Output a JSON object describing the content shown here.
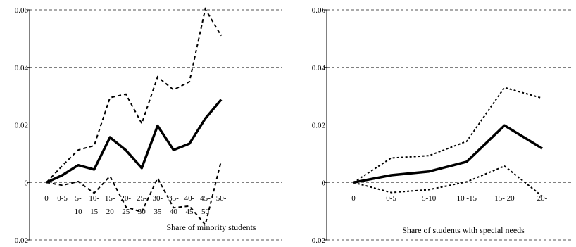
{
  "chart_data": [
    {
      "type": "line",
      "ylim": [
        -0.02,
        0.06
      ],
      "yticks": [
        "-0.02",
        "0",
        "0.02",
        "0.04",
        "0.06"
      ],
      "ytick_values": [
        -0.02,
        0,
        0.02,
        0.04,
        0.06
      ],
      "grid": true,
      "xlabel": "Share of minority students",
      "categories": [
        {
          "l1": "0",
          "l2": ""
        },
        {
          "l1": "0-5",
          "l2": ""
        },
        {
          "l1": "5-",
          "l2": "10"
        },
        {
          "l1": "10-",
          "l2": "15"
        },
        {
          "l1": "15-",
          "l2": "20"
        },
        {
          "l1": "20-",
          "l2": "25"
        },
        {
          "l1": "25-",
          "l2": "30"
        },
        {
          "l1": "30-",
          "l2": "35"
        },
        {
          "l1": "35-",
          "l2": "40"
        },
        {
          "l1": "40-",
          "l2": "45"
        },
        {
          "l1": "45-",
          "l2": "50"
        },
        {
          "l1": "50-",
          "l2": ""
        }
      ],
      "series": [
        {
          "role": "estimate",
          "values": [
            0,
            0.0025,
            0.006,
            0.0045,
            0.0157,
            0.0112,
            0.005,
            0.0197,
            0.0113,
            0.0135,
            0.0222,
            0.0288
          ]
        },
        {
          "role": "upper",
          "values": [
            0,
            0.0058,
            0.0113,
            0.0128,
            0.0295,
            0.0307,
            0.0205,
            0.0367,
            0.0322,
            0.035,
            0.0603,
            0.051
          ]
        },
        {
          "role": "lower",
          "values": [
            0,
            -0.001,
            0.0003,
            -0.0037,
            0.0022,
            -0.0085,
            -0.0103,
            0.0015,
            -0.0088,
            -0.0082,
            -0.0147,
            0.0075
          ]
        }
      ]
    },
    {
      "type": "line",
      "ylim": [
        -0.02,
        0.06
      ],
      "yticks": [
        "-0.02",
        "0",
        "0.02",
        "0.04",
        "0.06"
      ],
      "ytick_values": [
        -0.02,
        0,
        0.02,
        0.04,
        0.06
      ],
      "grid": true,
      "xlabel": "Share of students with special needs",
      "categories": [
        {
          "l1": "0",
          "l2": ""
        },
        {
          "l1": "0-5",
          "l2": ""
        },
        {
          "l1": "5-10",
          "l2": ""
        },
        {
          "l1": "10 -15",
          "l2": ""
        },
        {
          "l1": "15- 20",
          "l2": ""
        },
        {
          "l1": "20-",
          "l2": ""
        }
      ],
      "series": [
        {
          "role": "estimate",
          "values": [
            0,
            0.0025,
            0.0038,
            0.0072,
            0.0198,
            0.0118
          ]
        },
        {
          "role": "upper",
          "values": [
            0,
            0.0085,
            0.0093,
            0.0143,
            0.033,
            0.0293
          ]
        },
        {
          "role": "lower",
          "values": [
            0,
            -0.0035,
            -0.0025,
            0.0002,
            0.0057,
            -0.0048
          ]
        }
      ]
    }
  ]
}
